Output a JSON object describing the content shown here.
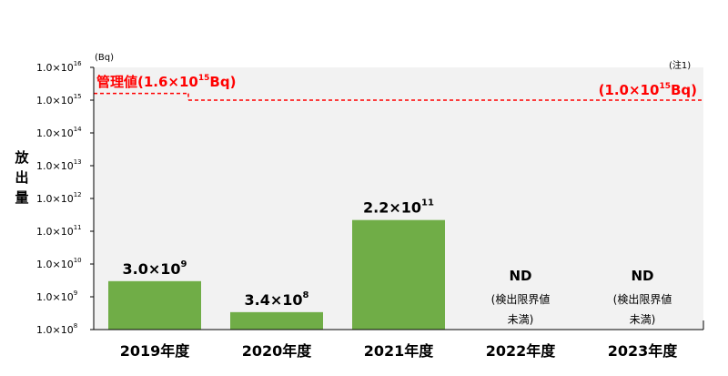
{
  "chart_data": {
    "type": "bar",
    "yscale": "log",
    "ylim": [
      100000000.0,
      1e+16
    ],
    "ylabel_chars": [
      "放",
      "出",
      "量"
    ],
    "yunit": "(Bq)",
    "note": "(注1)",
    "yticks": [
      {
        "base": "1.0×10",
        "exp": "8",
        "value": 100000000.0
      },
      {
        "base": "1.0×10",
        "exp": "9",
        "value": 1000000000.0
      },
      {
        "base": "1.0×10",
        "exp": "10",
        "value": 10000000000.0
      },
      {
        "base": "1.0×10",
        "exp": "11",
        "value": 100000000000.0
      },
      {
        "base": "1.0×10",
        "exp": "12",
        "value": 1000000000000.0
      },
      {
        "base": "1.0×10",
        "exp": "13",
        "value": 10000000000000.0
      },
      {
        "base": "1.0×10",
        "exp": "14",
        "value": 100000000000000.0
      },
      {
        "base": "1.0×10",
        "exp": "15",
        "value": 1000000000000000.0
      },
      {
        "base": "1.0×10",
        "exp": "16",
        "value": 1e+16
      }
    ],
    "categories": [
      "2019年度",
      "2020年度",
      "2021年度",
      "2022年度",
      "2023年度"
    ],
    "values": [
      3000000000.0,
      340000000.0,
      220000000000.0,
      null,
      null
    ],
    "labels": [
      {
        "base": "3.0×10",
        "exp": "9"
      },
      {
        "base": "3.4×10",
        "exp": "8"
      },
      {
        "base": "2.2×10",
        "exp": "11"
      },
      {
        "main": "ND",
        "note1": "(検出限界値",
        "note2": "未満)"
      },
      {
        "main": "ND",
        "note1": "(検出限界値",
        "note2": "未満)"
      }
    ],
    "reference_lines": [
      {
        "value": 1600000000000000.0,
        "from_category": 0,
        "to_category": 0,
        "label_prefix": "管理値(1.6×10",
        "label_exp": "15",
        "label_suffix": "Bq)"
      },
      {
        "value": 1000000000000000.0,
        "from_category": 1,
        "to_category": 4,
        "label_prefix": "(1.0×10",
        "label_exp": "15",
        "label_suffix": "Bq)"
      }
    ],
    "colors": {
      "bar": "#70ad47",
      "reference": "#ff0000",
      "plot_bg": "#f2f2f2"
    }
  }
}
